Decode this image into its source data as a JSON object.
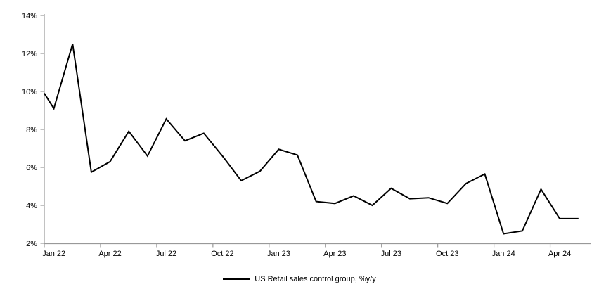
{
  "chart_data": {
    "type": "line",
    "title": "",
    "xlabel": "",
    "ylabel": "",
    "x": [
      "Dec 21",
      "Jan 22",
      "Feb 22",
      "Mar 22",
      "Apr 22",
      "May 22",
      "Jun 22",
      "Jul 22",
      "Aug 22",
      "Sep 22",
      "Oct 22",
      "Nov 22",
      "Dec 22",
      "Jan 23",
      "Feb 23",
      "Mar 23",
      "Apr 23",
      "May 23",
      "Jun 23",
      "Jul 23",
      "Aug 23",
      "Sep 23",
      "Oct 23",
      "Nov 23",
      "Dec 23",
      "Jan 24",
      "Feb 24",
      "Mar 24",
      "Apr 24",
      "May 24"
    ],
    "series": [
      {
        "name": "US Retail sales control group, %y/y",
        "values": [
          9.9,
          9.1,
          12.5,
          5.75,
          6.3,
          7.9,
          6.6,
          8.55,
          7.4,
          7.8,
          6.6,
          5.3,
          5.8,
          6.95,
          6.65,
          4.2,
          4.1,
          4.5,
          4.0,
          4.9,
          4.35,
          4.4,
          4.1,
          5.15,
          5.65,
          2.5,
          2.65,
          4.85,
          3.3,
          3.3
        ]
      }
    ],
    "ylim": [
      2,
      14
    ],
    "ytick_step": 2,
    "ytick_suffix": "%",
    "ytick_labels": [
      "2%",
      "4%",
      "6%",
      "8%",
      "10%",
      "12%",
      "14%"
    ],
    "xtick_labels": [
      "Jan 22",
      "Apr 22",
      "Jul 22",
      "Oct 22",
      "Jan 23",
      "Apr 23",
      "Jul 23",
      "Oct 23",
      "Jan 24",
      "Apr 24"
    ],
    "xtick_start_index": 1,
    "xtick_every": 3,
    "grid": false,
    "legend": {
      "position": "bottom-center",
      "entries": [
        "US Retail sales control group, %y/y"
      ]
    },
    "colors": {
      "line": "#000000",
      "axis": "#999999",
      "text": "#000000",
      "background": "#ffffff"
    }
  }
}
